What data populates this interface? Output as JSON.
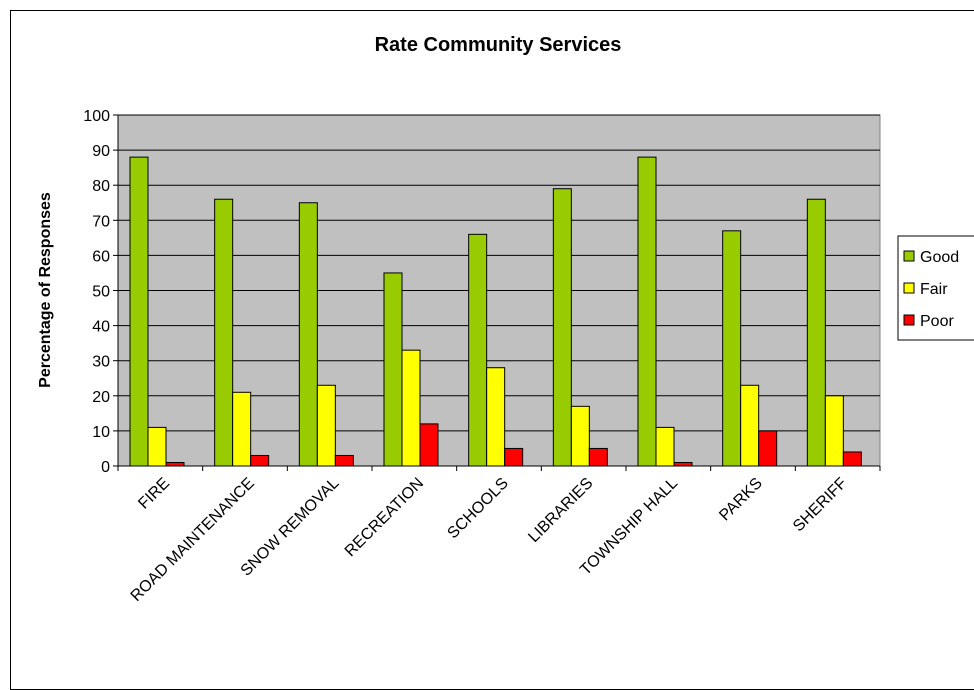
{
  "chart_data": {
    "type": "bar",
    "title": "Rate Community Services",
    "xlabel": "",
    "ylabel": "Percentage of Responses",
    "ylim": [
      0,
      100
    ],
    "yticks": [
      0,
      10,
      20,
      30,
      40,
      50,
      60,
      70,
      80,
      90,
      100
    ],
    "grid": true,
    "legend_position": "right",
    "plot_background": "#C0C0C0",
    "categories": [
      "FIRE",
      "ROAD MAINTENANCE",
      "SNOW REMOVAL",
      "RECREATION",
      "SCHOOLS",
      "LIBRARIES",
      "TOWNSHIP HALL",
      "PARKS",
      "SHERIFF"
    ],
    "series": [
      {
        "name": "Good",
        "color": "#99CC00",
        "values": [
          88,
          76,
          75,
          55,
          66,
          79,
          88,
          67,
          76
        ]
      },
      {
        "name": "Fair",
        "color": "#FFFF00",
        "values": [
          11,
          21,
          23,
          33,
          28,
          17,
          11,
          23,
          20
        ]
      },
      {
        "name": "Poor",
        "color": "#FF0000",
        "values": [
          1,
          3,
          3,
          12,
          5,
          5,
          1,
          10,
          4
        ]
      }
    ]
  }
}
